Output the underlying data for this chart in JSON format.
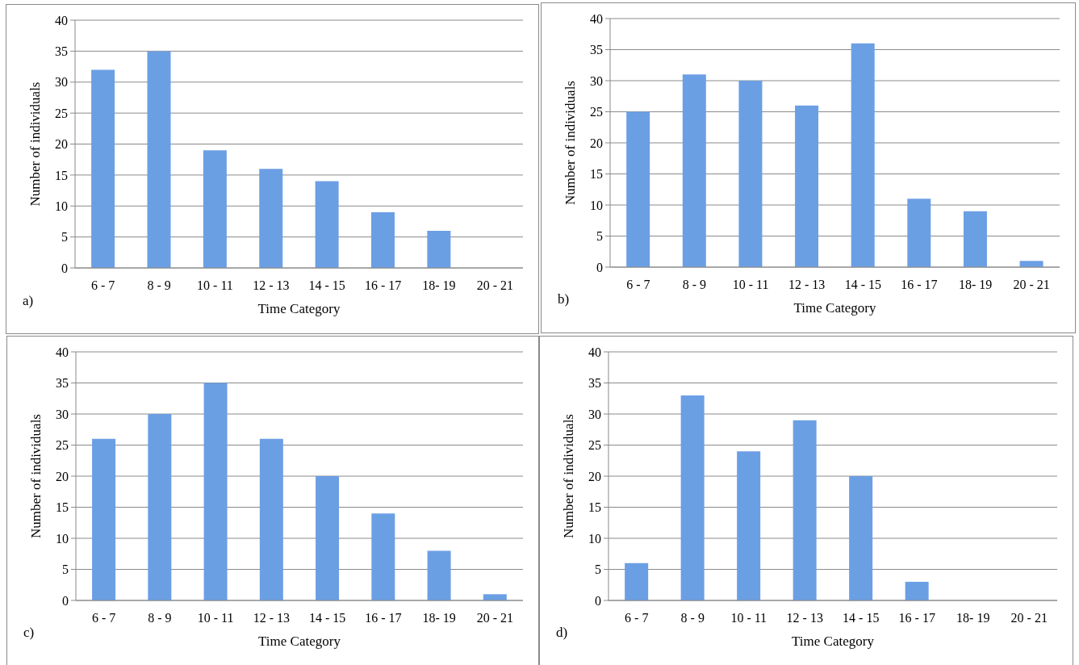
{
  "chart_data": [
    {
      "type": "bar",
      "categories": [
        "6 - 7",
        "8 - 9",
        "10 - 11",
        "12 - 13",
        "14 - 15",
        "16 - 17",
        "18- 19",
        "20 - 21"
      ],
      "values": [
        32,
        35,
        19,
        16,
        14,
        9,
        6,
        0
      ],
      "color": "#6b9fe4",
      "xlabel": "Time Category",
      "ylabel": "Number of individuals",
      "ylim": [
        0,
        40
      ],
      "yticks": [
        0,
        5,
        10,
        15,
        20,
        25,
        30,
        35,
        40
      ],
      "grid": "y",
      "annotations": [
        "a)"
      ]
    },
    {
      "type": "bar",
      "categories": [
        "6 - 7",
        "8 - 9",
        "10 - 11",
        "12 - 13",
        "14 - 15",
        "16 - 17",
        "18- 19",
        "20 - 21"
      ],
      "values": [
        25,
        31,
        30,
        26,
        36,
        11,
        9,
        1
      ],
      "color": "#6b9fe4",
      "xlabel": "Time Category",
      "ylabel": "Number of individuals",
      "ylim": [
        0,
        40
      ],
      "yticks": [
        0,
        5,
        10,
        15,
        20,
        25,
        30,
        35,
        40
      ],
      "grid": "y",
      "annotations": [
        "b)"
      ]
    },
    {
      "type": "bar",
      "categories": [
        "6 - 7",
        "8 - 9",
        "10 - 11",
        "12 - 13",
        "14 - 15",
        "16 - 17",
        "18- 19",
        "20 - 21"
      ],
      "values": [
        26,
        30,
        35,
        26,
        20,
        14,
        8,
        1
      ],
      "color": "#6b9fe4",
      "xlabel": "Time Category",
      "ylabel": "Number of individuals",
      "ylim": [
        0,
        40
      ],
      "yticks": [
        0,
        5,
        10,
        15,
        20,
        25,
        30,
        35,
        40
      ],
      "grid": "y",
      "annotations": [
        "c)"
      ]
    },
    {
      "type": "bar",
      "categories": [
        "6 - 7",
        "8 - 9",
        "10 - 11",
        "12 - 13",
        "14 - 15",
        "16 - 17",
        "18- 19",
        "20 - 21"
      ],
      "values": [
        6,
        33,
        24,
        29,
        20,
        3,
        0,
        0
      ],
      "color": "#6b9fe4",
      "xlabel": "Time Category",
      "ylabel": "Number of individuals",
      "ylim": [
        0,
        40
      ],
      "yticks": [
        0,
        5,
        10,
        15,
        20,
        25,
        30,
        35,
        40
      ],
      "grid": "y",
      "annotations": [
        "d)"
      ]
    }
  ]
}
